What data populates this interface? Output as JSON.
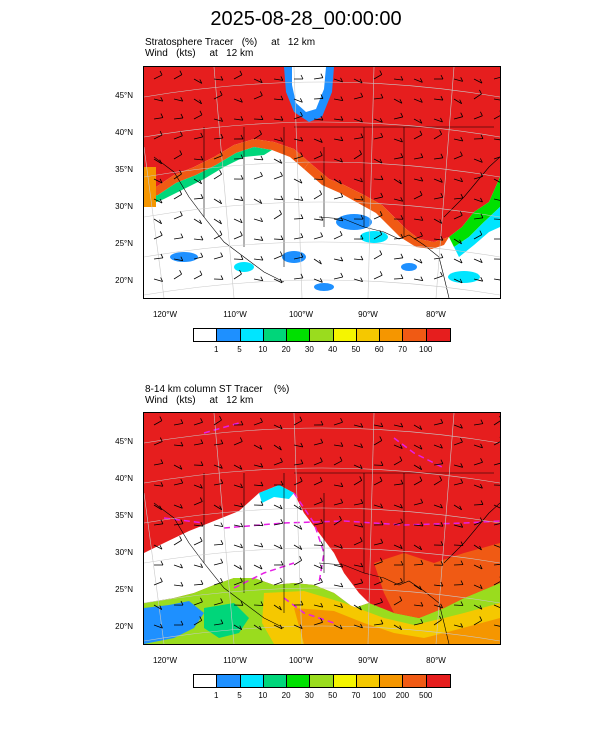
{
  "title": "2025-08-28_00:00:00",
  "panel1": {
    "line1": "Stratosphere Tracer   (%)     at   12 km",
    "line2": "Wind   (kts)     at   12 km",
    "lat_labels": [
      "45°N",
      "40°N",
      "35°N",
      "30°N",
      "25°N",
      "20°N"
    ],
    "lon_labels": [
      "120°W",
      "110°W",
      "100°W",
      "90°W",
      "80°W"
    ],
    "colorbar_labels": [
      "1",
      "5",
      "10",
      "20",
      "30",
      "40",
      "50",
      "60",
      "70",
      "100"
    ],
    "colorbar_colors": [
      "#ffffff",
      "#1e90ff",
      "#00e5ff",
      "#00d67a",
      "#00e000",
      "#9adc1e",
      "#f5f500",
      "#f5c800",
      "#f59600",
      "#f05a14",
      "#e61e1e"
    ]
  },
  "panel2": {
    "line1": "8-14 km column ST Tracer    (%)",
    "line2": "Wind   (kts)     at   12 km",
    "lat_labels": [
      "45°N",
      "40°N",
      "35°N",
      "30°N",
      "25°N",
      "20°N"
    ],
    "lon_labels": [
      "120°W",
      "110°W",
      "100°W",
      "90°W",
      "80°W"
    ],
    "colorbar_labels": [
      "1",
      "5",
      "10",
      "20",
      "30",
      "50",
      "70",
      "100",
      "200",
      "500"
    ],
    "colorbar_colors": [
      "#ffffff",
      "#1e90ff",
      "#00e5ff",
      "#00d67a",
      "#00e000",
      "#9adc1e",
      "#f5f500",
      "#f5c800",
      "#f59600",
      "#f05a14",
      "#e61e1e"
    ]
  }
}
